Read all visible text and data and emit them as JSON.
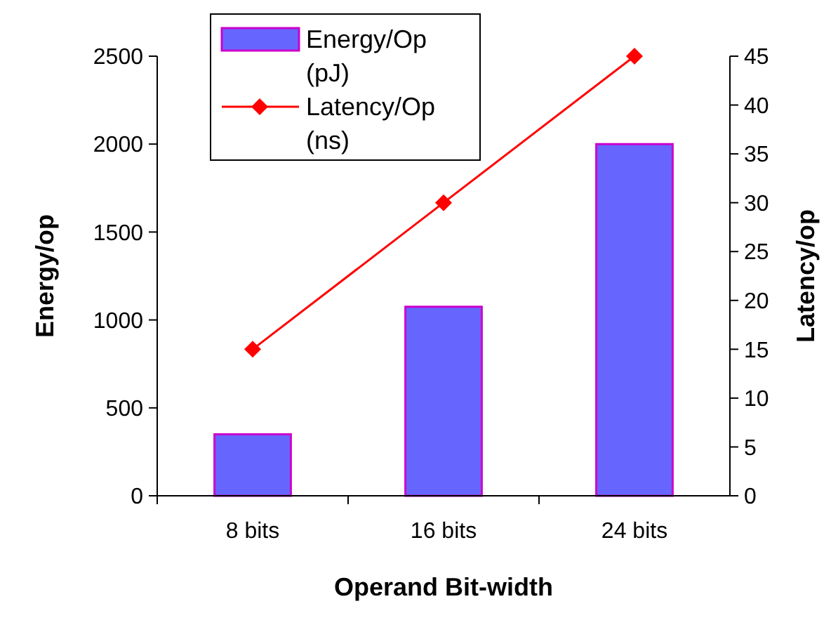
{
  "chart_data": {
    "type": "bar",
    "xlabel": "Operand Bit-width",
    "ylabel": "Energy/op",
    "y2label": "Latency/op",
    "categories": [
      "8 bits",
      "16 bits",
      "24 bits"
    ],
    "series": [
      {
        "name": "Energy/Op (pJ)",
        "color": "#6666ff",
        "values": [
          350,
          1075,
          2000
        ]
      },
      {
        "name": "Latency/Op (ns)",
        "type": "line",
        "axis": "y2",
        "color": "#ff0000",
        "values": [
          15,
          30,
          45
        ],
        "marker": "diamond"
      }
    ],
    "ylim": [
      0,
      2500
    ],
    "yticks": [
      0,
      500,
      1000,
      1500,
      2000,
      2500
    ],
    "y2lim": [
      0,
      45
    ],
    "y2ticks": [
      0,
      5,
      10,
      15,
      20,
      25,
      30,
      35,
      40,
      45
    ],
    "grid": false,
    "legend": "top left"
  }
}
